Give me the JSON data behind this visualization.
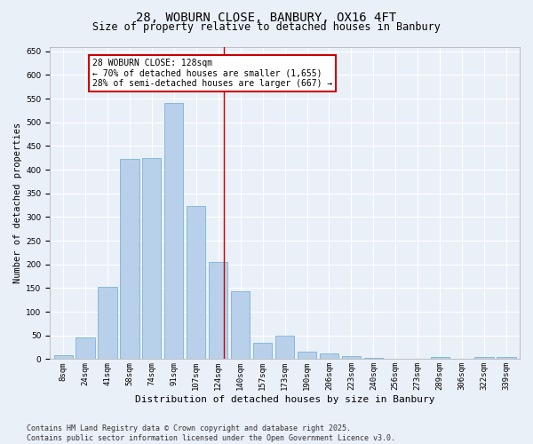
{
  "title": "28, WOBURN CLOSE, BANBURY, OX16 4FT",
  "subtitle": "Size of property relative to detached houses in Banbury",
  "xlabel": "Distribution of detached houses by size in Banbury",
  "ylabel": "Number of detached properties",
  "categories": [
    "8sqm",
    "24sqm",
    "41sqm",
    "58sqm",
    "74sqm",
    "91sqm",
    "107sqm",
    "124sqm",
    "140sqm",
    "157sqm",
    "173sqm",
    "190sqm",
    "206sqm",
    "223sqm",
    "240sqm",
    "256sqm",
    "273sqm",
    "289sqm",
    "306sqm",
    "322sqm",
    "339sqm"
  ],
  "values": [
    8,
    45,
    153,
    422,
    424,
    541,
    323,
    205,
    143,
    35,
    50,
    16,
    12,
    6,
    2,
    0,
    0,
    5,
    0,
    5,
    5
  ],
  "bar_color": "#b8d0ea",
  "bar_edge_color": "#6aabd2",
  "bg_color": "#eaf0f8",
  "grid_color": "#ffffff",
  "annotation_text": "28 WOBURN CLOSE: 128sqm\n← 70% of detached houses are smaller (1,655)\n28% of semi-detached houses are larger (667) →",
  "annotation_box_color": "#ffffff",
  "annotation_box_edge_color": "#cc0000",
  "vline_color": "#cc0000",
  "ylim": [
    0,
    660
  ],
  "yticks": [
    0,
    50,
    100,
    150,
    200,
    250,
    300,
    350,
    400,
    450,
    500,
    550,
    600,
    650
  ],
  "footer": "Contains HM Land Registry data © Crown copyright and database right 2025.\nContains public sector information licensed under the Open Government Licence v3.0.",
  "title_fontsize": 10,
  "subtitle_fontsize": 8.5,
  "xlabel_fontsize": 8,
  "ylabel_fontsize": 7.5,
  "tick_fontsize": 6.5,
  "annotation_fontsize": 7,
  "footer_fontsize": 6
}
